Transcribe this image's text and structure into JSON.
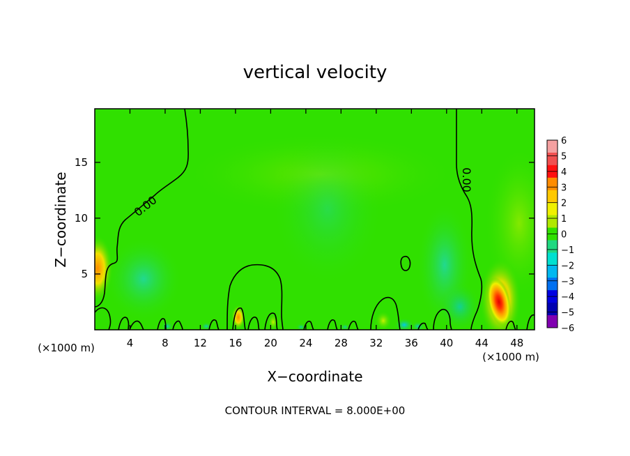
{
  "chart_data": {
    "type": "heatmap",
    "title": "vertical velocity",
    "xlabel": "X−coordinate",
    "ylabel": "Z−coordinate",
    "x_unit_label": "(×1000 m)",
    "z_unit_label": "(×1000 m)",
    "xlim": [
      0,
      50
    ],
    "ylim": [
      0,
      19.8
    ],
    "x_ticks": [
      4,
      8,
      12,
      16,
      20,
      24,
      28,
      32,
      36,
      40,
      44,
      48
    ],
    "y_ticks": [
      5,
      10,
      15
    ],
    "contour_label_text": "0.00",
    "contour_interval_text": "CONTOUR INTERVAL = 8.000E+00",
    "colorbar": {
      "ticks": [
        "6",
        "5",
        "4",
        "3",
        "2",
        "1",
        "0",
        "−1",
        "−2",
        "−3",
        "−4",
        "−5",
        "−6"
      ],
      "values": [
        6,
        5,
        4,
        3,
        2,
        1,
        0,
        -1,
        -2,
        -3,
        -4,
        -5,
        -6
      ],
      "colors": [
        "#f4a0a0",
        "#f05050",
        "#ff1010",
        "#ff8c00",
        "#ffc800",
        "#f0f000",
        "#b0e800",
        "#30e000",
        "#20d880",
        "#00e0d0",
        "#00b8f0",
        "#0070f0",
        "#0000e0",
        "#0000b0",
        "#8000b0"
      ]
    },
    "features": [
      {
        "kind": "updraft",
        "x": 46,
        "z": 2.4,
        "peak": 5
      },
      {
        "kind": "updraft",
        "x": 0.5,
        "z": 5.5,
        "peak": 3.5
      },
      {
        "kind": "updraft",
        "x": 16.3,
        "z": 1.0,
        "peak": 2
      },
      {
        "kind": "downdraft",
        "x": 5.5,
        "z": 4.5,
        "peak": -1.2
      },
      {
        "kind": "downdraft",
        "x": 39,
        "z": 5.5,
        "peak": -1.5
      },
      {
        "kind": "downdraft",
        "x": 35,
        "z": 0.4,
        "peak": -2
      }
    ]
  }
}
